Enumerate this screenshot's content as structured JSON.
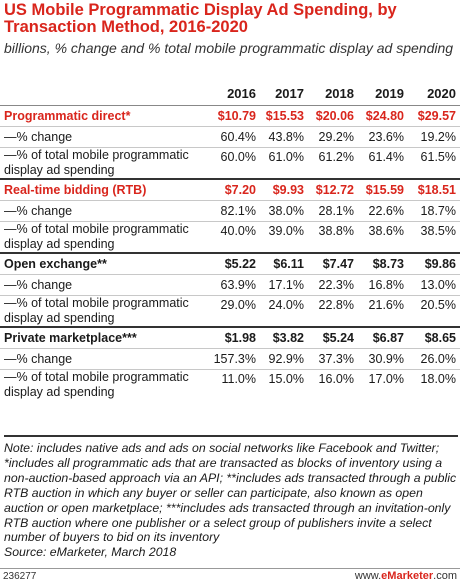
{
  "title": "US Mobile Programmatic Display Ad Spending, by Transaction Method, 2016-2020",
  "subtitle": "billions, % change and % total mobile programmatic display ad spending",
  "chart_data": {
    "type": "table",
    "columns": [
      "2016",
      "2017",
      "2018",
      "2019",
      "2020"
    ],
    "groups": [
      {
        "name": "Programmatic direct*",
        "values": [
          "$10.79",
          "$15.53",
          "$20.06",
          "$24.80",
          "$29.57"
        ],
        "highlight": true,
        "rows": [
          {
            "label": "—% change",
            "values": [
              "60.4%",
              "43.8%",
              "29.2%",
              "23.6%",
              "19.2%"
            ]
          },
          {
            "label": "—% of total mobile programmatic display ad spending",
            "values": [
              "60.0%",
              "61.0%",
              "61.2%",
              "61.4%",
              "61.5%"
            ]
          }
        ]
      },
      {
        "name": "Real-time bidding (RTB)",
        "values": [
          "$7.20",
          "$9.93",
          "$12.72",
          "$15.59",
          "$18.51"
        ],
        "highlight": true,
        "rows": [
          {
            "label": "—% change",
            "values": [
              "82.1%",
              "38.0%",
              "28.1%",
              "22.6%",
              "18.7%"
            ]
          },
          {
            "label": "—% of total mobile programmatic display ad spending",
            "values": [
              "40.0%",
              "39.0%",
              "38.8%",
              "38.6%",
              "38.5%"
            ]
          }
        ]
      },
      {
        "name": "Open exchange**",
        "values": [
          "$5.22",
          "$6.11",
          "$7.47",
          "$8.73",
          "$9.86"
        ],
        "highlight": false,
        "rows": [
          {
            "label": "—% change",
            "values": [
              "63.9%",
              "17.1%",
              "22.3%",
              "16.8%",
              "13.0%"
            ]
          },
          {
            "label": "—% of total mobile programmatic display ad spending",
            "values": [
              "29.0%",
              "24.0%",
              "22.8%",
              "21.6%",
              "20.5%"
            ]
          }
        ]
      },
      {
        "name": "Private marketplace***",
        "values": [
          "$1.98",
          "$3.82",
          "$5.24",
          "$6.87",
          "$8.65"
        ],
        "highlight": false,
        "rows": [
          {
            "label": "—% change",
            "values": [
              "157.3%",
              "92.9%",
              "37.3%",
              "30.9%",
              "26.0%"
            ]
          },
          {
            "label": "—% of total mobile programmatic display ad spending",
            "values": [
              "11.0%",
              "15.0%",
              "16.0%",
              "17.0%",
              "18.0%"
            ]
          }
        ]
      }
    ]
  },
  "note": "Note: includes native ads and ads on social networks like Facebook and Twitter; *includes all programmatic ads that are transacted as blocks of inventory using a non-auction-based approach via an API; **includes ads transacted through a public RTB auction in which any buyer or seller can participate, also known as open auction or open marketplace; ***includes ads transacted through an invitation-only RTB auction where one publisher or a select group of publishers invite a select number of buyers to bid on its inventory",
  "source": "Source: eMarketer, March 2018",
  "footer": {
    "id": "236277",
    "brand_prefix": "www.",
    "brand_name": "eMarketer",
    "brand_suffix": ".com"
  },
  "colors": {
    "accent": "#d9251c",
    "text": "#1a1a1a"
  }
}
